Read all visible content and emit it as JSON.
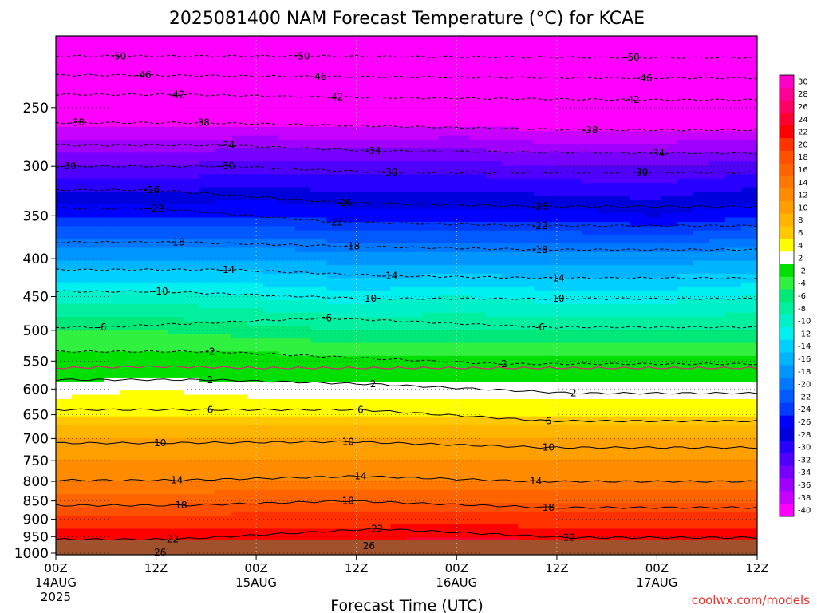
{
  "chart_data": {
    "type": "heatmap",
    "title": "2025081400 NAM Forecast Temperature (°C) for KCAE",
    "xlabel": "Forecast Time (UTC)",
    "ylabel": "",
    "credit": "coolwx.com/models",
    "x_axis": {
      "range_hours": [
        0,
        84
      ],
      "ticks": [
        {
          "hour": 0,
          "label": "00Z",
          "sub": "14AUG",
          "sub2": "2025"
        },
        {
          "hour": 12,
          "label": "12Z",
          "sub": "",
          "sub2": ""
        },
        {
          "hour": 24,
          "label": "00Z",
          "sub": "15AUG",
          "sub2": ""
        },
        {
          "hour": 36,
          "label": "12Z",
          "sub": "",
          "sub2": ""
        },
        {
          "hour": 48,
          "label": "00Z",
          "sub": "16AUG",
          "sub2": ""
        },
        {
          "hour": 60,
          "label": "12Z",
          "sub": "",
          "sub2": ""
        },
        {
          "hour": 72,
          "label": "00Z",
          "sub": "17AUG",
          "sub2": ""
        },
        {
          "hour": 84,
          "label": "12Z",
          "sub": "",
          "sub2": ""
        }
      ]
    },
    "y_axis": {
      "scale": "log",
      "range_hpa": [
        200,
        1000
      ],
      "surface_hpa": 1005,
      "ticks": [
        250,
        300,
        350,
        400,
        450,
        500,
        550,
        600,
        650,
        700,
        750,
        800,
        850,
        900,
        950,
        1000
      ]
    },
    "colorbar": {
      "units": "°C",
      "levels": [
        30,
        28,
        26,
        24,
        22,
        20,
        18,
        16,
        14,
        12,
        10,
        8,
        6,
        4,
        2,
        -2,
        -4,
        -6,
        -8,
        -10,
        -12,
        -14,
        -16,
        -18,
        -20,
        -22,
        -24,
        -26,
        -28,
        -30,
        -32,
        -34,
        -36,
        -38,
        -40
      ],
      "colors": [
        "#ff00c8",
        "#ff0096",
        "#ff0064",
        "#ff0032",
        "#ff0000",
        "#ff3200",
        "#ff5000",
        "#ff6400",
        "#ff7800",
        "#ff8c00",
        "#ffa000",
        "#ffb400",
        "#ffc800",
        "#ffff00",
        "#ffffff",
        "#00e000",
        "#30f040",
        "#00e878",
        "#00f0a0",
        "#00f0c8",
        "#00f0f0",
        "#00d0ff",
        "#00b4ff",
        "#0096ff",
        "#0078ff",
        "#005aff",
        "#003cff",
        "#0000ff",
        "#0000dc",
        "#2800ff",
        "#5000ff",
        "#7800ff",
        "#a000ff",
        "#c800ff",
        "#ff00ff"
      ]
    },
    "pressure_levels": [
      200,
      250,
      300,
      350,
      400,
      450,
      500,
      550,
      600,
      650,
      700,
      750,
      800,
      850,
      900,
      950,
      1000
    ],
    "times_hours": [
      0,
      12,
      24,
      36,
      48,
      60,
      72,
      84
    ],
    "temperature_c": [
      [
        -53,
        -53,
        -53,
        -53,
        -53,
        -53,
        -53,
        -53
      ],
      [
        -41,
        -41,
        -41,
        -42,
        -41,
        -42,
        -42,
        -42
      ],
      [
        -32,
        -32,
        -31,
        -31,
        -31,
        -32,
        -32,
        -31
      ],
      [
        -24,
        -24,
        -24,
        -25,
        -25,
        -25,
        -26,
        -24
      ],
      [
        -16,
        -16,
        -16,
        -17,
        -17,
        -17,
        -17,
        -16
      ],
      [
        -9,
        -9,
        -10,
        -11,
        -10,
        -11,
        -11,
        -10
      ],
      [
        -4,
        -4,
        -5,
        -6,
        -6,
        -6,
        -6,
        -6
      ],
      [
        -1,
        -1,
        -1,
        -1,
        -1,
        -1,
        -1,
        -1
      ],
      [
        3,
        4,
        3,
        3,
        3,
        3,
        3,
        3
      ],
      [
        6,
        6,
        6,
        6,
        6,
        6,
        6,
        6
      ],
      [
        10,
        10,
        10,
        10,
        10,
        10,
        10,
        10
      ],
      [
        12,
        12,
        12,
        12,
        12,
        12,
        12,
        12
      ],
      [
        14,
        14,
        14,
        14,
        14,
        14,
        14,
        14
      ],
      [
        17,
        17,
        18,
        18,
        18,
        18,
        18,
        18
      ],
      [
        21,
        21,
        21,
        21,
        21,
        21,
        21,
        21
      ],
      [
        23,
        23,
        23,
        23,
        24,
        23,
        23,
        23
      ],
      [
        25,
        26,
        25,
        25,
        27,
        26,
        25,
        25
      ]
    ],
    "contour_labels": [
      {
        "value": "-50",
        "hour": 7.5,
        "hpa": 213
      },
      {
        "value": "-50",
        "hour": 29.5,
        "hpa": 213
      },
      {
        "value": "-50",
        "hour": 69,
        "hpa": 214
      },
      {
        "value": "-46",
        "hour": 10.5,
        "hpa": 226
      },
      {
        "value": "-46",
        "hour": 31.5,
        "hpa": 227
      },
      {
        "value": "-46",
        "hour": 70.5,
        "hpa": 228
      },
      {
        "value": "-42",
        "hour": 14.5,
        "hpa": 240
      },
      {
        "value": "-42",
        "hour": 33.5,
        "hpa": 242
      },
      {
        "value": "-42",
        "hour": 69,
        "hpa": 244
      },
      {
        "value": "-38",
        "hour": 2.5,
        "hpa": 262
      },
      {
        "value": "-38",
        "hour": 17.5,
        "hpa": 262
      },
      {
        "value": "-38",
        "hour": 64,
        "hpa": 268
      },
      {
        "value": "-34",
        "hour": 20.5,
        "hpa": 281
      },
      {
        "value": "-34",
        "hour": 38,
        "hpa": 286
      },
      {
        "value": "-34",
        "hour": 72,
        "hpa": 288
      },
      {
        "value": "-30",
        "hour": 1.5,
        "hpa": 300
      },
      {
        "value": "-30",
        "hour": 20.5,
        "hpa": 300
      },
      {
        "value": "-30",
        "hour": 40,
        "hpa": 306
      },
      {
        "value": "-30",
        "hour": 70,
        "hpa": 306
      },
      {
        "value": "-26",
        "hour": 11.5,
        "hpa": 323
      },
      {
        "value": "-26",
        "hour": 34.5,
        "hpa": 336
      },
      {
        "value": "-26",
        "hour": 58,
        "hpa": 340
      },
      {
        "value": "-22",
        "hour": 12,
        "hpa": 342
      },
      {
        "value": "-22",
        "hour": 33.5,
        "hpa": 357
      },
      {
        "value": "-22",
        "hour": 58,
        "hpa": 361
      },
      {
        "value": "-18",
        "hour": 14.5,
        "hpa": 380
      },
      {
        "value": "-18",
        "hour": 35.5,
        "hpa": 385
      },
      {
        "value": "-18",
        "hour": 58,
        "hpa": 389
      },
      {
        "value": "-14",
        "hour": 20.5,
        "hpa": 414
      },
      {
        "value": "-14",
        "hour": 40,
        "hpa": 422
      },
      {
        "value": "-14",
        "hour": 60,
        "hpa": 425
      },
      {
        "value": "-10",
        "hour": 12.5,
        "hpa": 443
      },
      {
        "value": "-10",
        "hour": 37.5,
        "hpa": 453
      },
      {
        "value": "-10",
        "hour": 60,
        "hpa": 453
      },
      {
        "value": "-6",
        "hour": 5.5,
        "hpa": 495
      },
      {
        "value": "-6",
        "hour": 32.5,
        "hpa": 481
      },
      {
        "value": "-6",
        "hour": 58,
        "hpa": 495
      },
      {
        "value": "-2",
        "hour": 18.5,
        "hpa": 534
      },
      {
        "value": "-2",
        "hour": 53.5,
        "hpa": 555
      },
      {
        "value": "2",
        "hour": 18.5,
        "hpa": 583
      },
      {
        "value": "2",
        "hour": 38,
        "hpa": 591
      },
      {
        "value": "2",
        "hour": 62,
        "hpa": 608
      },
      {
        "value": "6",
        "hour": 18.5,
        "hpa": 640
      },
      {
        "value": "6",
        "hour": 36.5,
        "hpa": 640
      },
      {
        "value": "6",
        "hour": 59,
        "hpa": 663
      },
      {
        "value": "10",
        "hour": 12.5,
        "hpa": 710
      },
      {
        "value": "10",
        "hour": 35,
        "hpa": 707
      },
      {
        "value": "10",
        "hour": 59,
        "hpa": 720
      },
      {
        "value": "14",
        "hour": 14.5,
        "hpa": 797
      },
      {
        "value": "14",
        "hour": 36.5,
        "hpa": 787
      },
      {
        "value": "14",
        "hour": 57.5,
        "hpa": 800
      },
      {
        "value": "18",
        "hour": 15,
        "hpa": 862
      },
      {
        "value": "18",
        "hour": 35,
        "hpa": 850
      },
      {
        "value": "18",
        "hour": 59,
        "hpa": 868
      },
      {
        "value": "22",
        "hour": 14,
        "hpa": 958
      },
      {
        "value": "22",
        "hour": 38.5,
        "hpa": 927
      },
      {
        "value": "22",
        "hour": 61.5,
        "hpa": 953
      },
      {
        "value": "26",
        "hour": 12.5,
        "hpa": 998
      },
      {
        "value": "26",
        "hour": 37.5,
        "hpa": 978
      }
    ]
  }
}
